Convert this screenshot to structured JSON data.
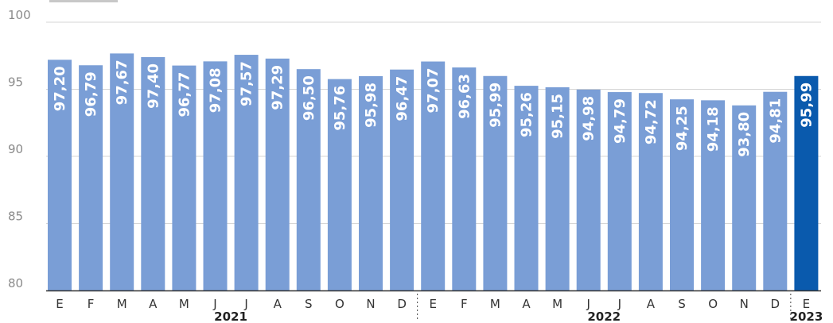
{
  "chart_data": {
    "type": "bar",
    "categories": [
      "E",
      "F",
      "M",
      "A",
      "M",
      "J",
      "J",
      "A",
      "S",
      "O",
      "N",
      "D",
      "E",
      "F",
      "M",
      "A",
      "M",
      "J",
      "J",
      "A",
      "S",
      "O",
      "N",
      "D",
      "E"
    ],
    "values": [
      97.2,
      96.79,
      97.67,
      97.4,
      96.77,
      97.08,
      97.57,
      97.29,
      96.5,
      95.76,
      95.98,
      96.47,
      97.07,
      96.63,
      95.99,
      95.26,
      95.15,
      94.98,
      94.79,
      94.72,
      94.25,
      94.18,
      93.8,
      94.81,
      95.99
    ],
    "value_labels": [
      "97,20",
      "96,79",
      "97,67",
      "97,40",
      "96,77",
      "97,08",
      "97,57",
      "97,29",
      "96,50",
      "95,76",
      "95,98",
      "96,47",
      "97,07",
      "96,63",
      "95,99",
      "95,26",
      "95,15",
      "94,98",
      "94,79",
      "94,72",
      "94,25",
      "94,18",
      "93,80",
      "94,81",
      "95,99"
    ],
    "ylim": [
      80,
      100
    ],
    "yticks": [
      80,
      85,
      90,
      95,
      100
    ],
    "grid": true,
    "years": [
      {
        "label": "2021",
        "start": 0,
        "end": 11
      },
      {
        "label": "2022",
        "start": 12,
        "end": 23
      },
      {
        "label": "2023",
        "start": 24,
        "end": 24
      }
    ],
    "highlight_index": 24,
    "colors": {
      "bar": "#7a9ed6",
      "highlight": "#0a5aad",
      "grid": "#d4d4d4",
      "axis": "#333333"
    }
  }
}
